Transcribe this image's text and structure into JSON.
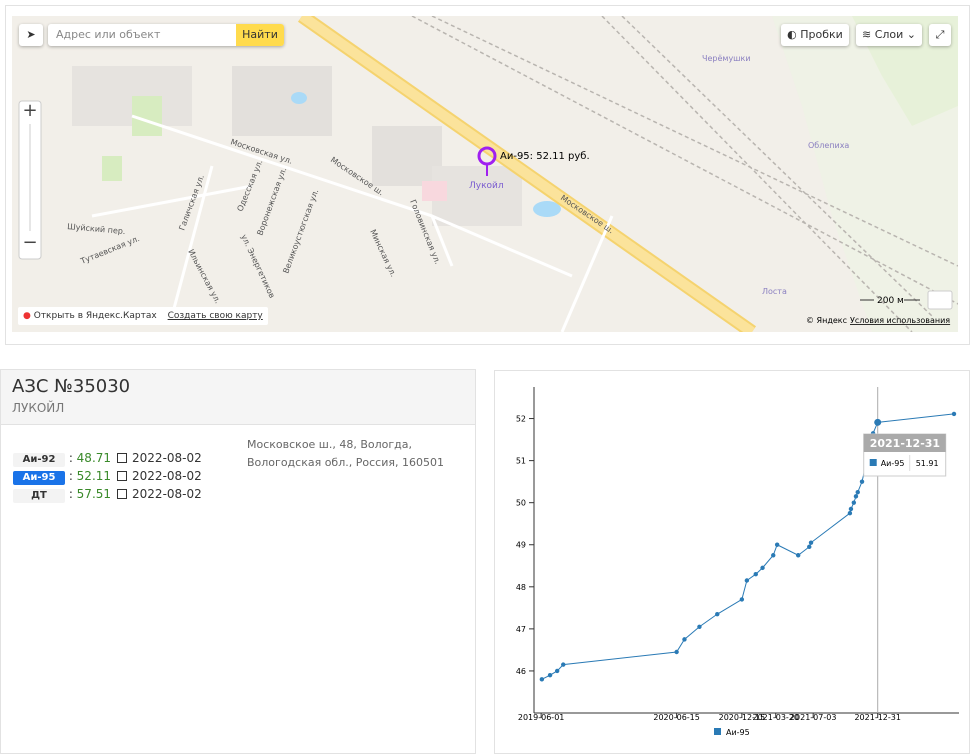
{
  "map": {
    "search_placeholder": "Адрес или объект",
    "search_button": "Найти",
    "traffic_button": "Пробки",
    "layers_button": "Слои",
    "marker_label": "Аи-95: 52.11 руб.",
    "marker_name": "Лукойл",
    "labels": [
      "Московское ш.",
      "Московское ш.",
      "Московская ул.",
      "Шуйский пер.",
      "Тутаевская ул.",
      "Галичская ул.",
      "Ильинская ул.",
      "Одесская ул.",
      "Воронежская ул.",
      "ул. Энергетиков",
      "Великоустюгская ул.",
      "Минская ул.",
      "Головинская ул.",
      "Черёмушки",
      "Облепиха",
      "Лоста"
    ],
    "scale": "200 м",
    "copyright": "© Яндекс",
    "terms": "Условия использования",
    "open_link": "Открыть в Яндекс.Картах",
    "create_link": "Создать свою карту"
  },
  "station": {
    "title": "АЗС №35030",
    "brand": "ЛУКОЙЛ",
    "prices": [
      {
        "fuel": "Аи-92",
        "price": 48.71,
        "date": "2022-08-02"
      },
      {
        "fuel": "Аи-95",
        "price": 52.11,
        "date": "2022-08-02"
      },
      {
        "fuel": "ДТ",
        "price": 57.51,
        "date": "2022-08-02"
      }
    ],
    "address": "Московское ш., 48, Вологда, Вологодская обл., Россия, 160501"
  },
  "chart_data": {
    "type": "line",
    "x": [
      "2019-06-03",
      "2019-06-26",
      "2019-07-16",
      "2019-08-02",
      "2020-06-15",
      "2020-07-07",
      "2020-08-18",
      "2020-10-07",
      "2020-12-15",
      "2020-12-29",
      "2021-01-23",
      "2021-02-11",
      "2021-03-13",
      "2021-03-24",
      "2021-05-22",
      "2021-06-22",
      "2021-06-27",
      "2021-10-14",
      "2021-10-17",
      "2021-10-25",
      "2021-10-31",
      "2021-11-05",
      "2021-11-17",
      "2021-12-18",
      "2021-12-31",
      "2022-08-02"
    ],
    "series": [
      {
        "name": "Аи-95",
        "color": "#2a7ab5",
        "values": [
          45.8,
          45.9,
          46.0,
          46.15,
          46.45,
          46.75,
          47.05,
          47.35,
          47.7,
          48.15,
          48.3,
          48.45,
          48.75,
          49.0,
          48.75,
          48.95,
          49.05,
          49.75,
          49.85,
          50.0,
          50.15,
          50.25,
          50.5,
          51.65,
          51.91,
          52.11
        ]
      }
    ],
    "xlim": [
      "2019-05-12",
      "2022-08-16"
    ],
    "xticks": [
      "2019-06-01",
      "2020-06-15",
      "2020-12-15",
      "2021-03-20",
      "2021-07-03",
      "2021-12-31"
    ],
    "ylim": [
      45,
      52.75
    ],
    "yticks": [
      46,
      47,
      48,
      49,
      50,
      51,
      52
    ]
  }
}
